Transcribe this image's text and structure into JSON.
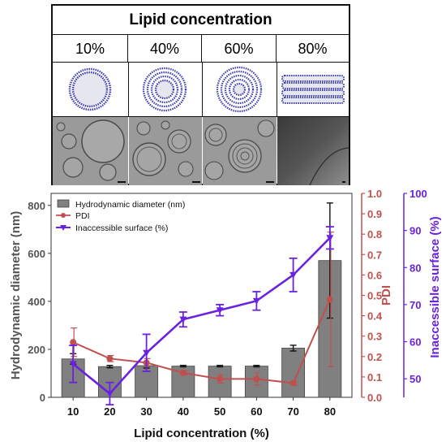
{
  "header": {
    "title": "Lipid concentration",
    "columns": [
      "10%",
      "40%",
      "60%",
      "80%"
    ]
  },
  "chart_data": {
    "type": "bar",
    "categories": [
      "10",
      "20",
      "30",
      "40",
      "50",
      "60",
      "70",
      "80"
    ],
    "xlabel": "Lipid concentration (%)",
    "y_left": {
      "label": "Hydrodynamic diameter (nm)",
      "lim": [
        0,
        850
      ],
      "ticks": [
        "0",
        "200",
        "400",
        "600",
        "800"
      ]
    },
    "y_right1": {
      "label": "PDI",
      "lim": [
        0,
        1.0
      ],
      "ticks": [
        "0.0",
        "0.1",
        "0.2",
        "0.3",
        "0.4",
        "0.5",
        "0.6",
        "0.7",
        "0.8",
        "0.9",
        "1.0"
      ]
    },
    "y_right2": {
      "label": "Inaccessible surface (%)",
      "lim": [
        45,
        100
      ],
      "ticks": [
        "50",
        "60",
        "70",
        "80",
        "90",
        "100"
      ]
    },
    "legend_position": "top-left",
    "series": [
      {
        "name": "Hydrodynamic diameter (nm)",
        "kind": "bar",
        "axis": "left",
        "color": "#808080",
        "values": [
          160,
          128,
          132,
          130,
          130,
          130,
          205,
          570
        ],
        "errors": [
          22,
          5,
          10,
          3,
          3,
          3,
          12,
          240
        ]
      },
      {
        "name": "PDI",
        "kind": "line",
        "axis": "right1",
        "color": "#c0504d",
        "values": [
          0.27,
          0.19,
          0.17,
          0.12,
          0.09,
          0.09,
          0.07,
          0.48
        ],
        "errors": [
          0.07,
          0.015,
          0.02,
          0.01,
          0.02,
          0.03,
          0.01,
          0.33
        ]
      },
      {
        "name": "Inaccessible surface (%)",
        "kind": "line",
        "axis": "right2",
        "color": "#6a22e0",
        "values": [
          54,
          46,
          57,
          66,
          68.5,
          71,
          78,
          88
        ],
        "errors": [
          5,
          3,
          5,
          2,
          1.5,
          2.5,
          4.5,
          3
        ]
      }
    ]
  }
}
